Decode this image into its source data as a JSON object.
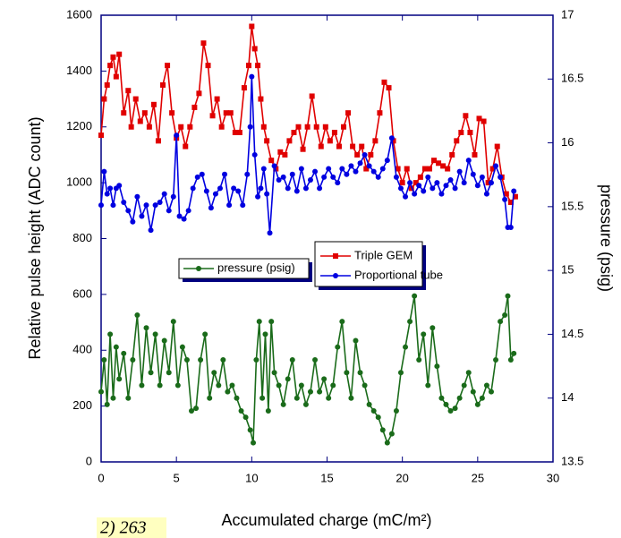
{
  "chart_data": {
    "type": "line",
    "x_label": "Accumulated charge (mC/m²)",
    "y_label": "Relative pulse height (ADC count)",
    "y2_label": "pressure (psig)",
    "annotation": "2) 263",
    "xlim": [
      0,
      30
    ],
    "xticks": [
      0,
      5,
      10,
      15,
      20,
      25,
      30
    ],
    "ylim": [
      0,
      1600
    ],
    "yticks": [
      0,
      200,
      400,
      600,
      800,
      1000,
      1200,
      1400,
      1600
    ],
    "y2lim": [
      13.5,
      17
    ],
    "y2ticks": [
      13.5,
      14,
      14.5,
      15,
      15.5,
      16,
      16.5,
      17
    ],
    "axis_color": "#000080",
    "series": [
      {
        "name": "Triple GEM",
        "color": "#e00000",
        "marker": "square",
        "x": [
          0,
          0.2,
          0.4,
          0.6,
          0.8,
          1.0,
          1.2,
          1.5,
          1.8,
          2.0,
          2.3,
          2.6,
          2.9,
          3.2,
          3.5,
          3.8,
          4.1,
          4.4,
          4.7,
          5.0,
          5.3,
          5.6,
          5.9,
          6.2,
          6.5,
          6.8,
          7.1,
          7.4,
          7.7,
          8.0,
          8.3,
          8.6,
          8.9,
          9.2,
          9.5,
          9.8,
          10.0,
          10.2,
          10.4,
          10.6,
          10.8,
          11.0,
          11.3,
          11.6,
          11.9,
          12.2,
          12.5,
          12.8,
          13.1,
          13.4,
          13.7,
          14.0,
          14.3,
          14.6,
          14.9,
          15.2,
          15.5,
          15.8,
          16.1,
          16.4,
          16.7,
          17.0,
          17.3,
          17.6,
          17.9,
          18.2,
          18.5,
          18.8,
          19.1,
          19.4,
          19.7,
          20.0,
          20.3,
          20.6,
          20.9,
          21.2,
          21.5,
          21.8,
          22.1,
          22.4,
          22.7,
          23.0,
          23.3,
          23.6,
          23.9,
          24.2,
          24.5,
          24.8,
          25.1,
          25.4,
          25.7,
          26.0,
          26.3,
          26.6,
          26.9,
          27.2,
          27.5
        ],
        "values": [
          1170,
          1300,
          1350,
          1420,
          1450,
          1380,
          1460,
          1250,
          1330,
          1200,
          1300,
          1220,
          1250,
          1200,
          1280,
          1150,
          1350,
          1420,
          1250,
          1160,
          1200,
          1130,
          1200,
          1270,
          1320,
          1500,
          1420,
          1240,
          1300,
          1200,
          1250,
          1250,
          1180,
          1180,
          1340,
          1420,
          1560,
          1480,
          1420,
          1300,
          1200,
          1150,
          1080,
          1050,
          1110,
          1100,
          1150,
          1180,
          1200,
          1120,
          1200,
          1310,
          1200,
          1130,
          1200,
          1150,
          1180,
          1130,
          1200,
          1250,
          1130,
          1100,
          1130,
          1050,
          1100,
          1150,
          1250,
          1360,
          1340,
          1150,
          1050,
          1000,
          1050,
          980,
          1000,
          1020,
          1050,
          1050,
          1080,
          1070,
          1060,
          1050,
          1100,
          1150,
          1180,
          1240,
          1180,
          1100,
          1230,
          1220,
          1000,
          1050,
          1130,
          1020,
          960,
          930,
          950
        ]
      },
      {
        "name": "Proportional tube",
        "color": "#0000e0",
        "marker": "circle",
        "x": [
          0,
          0.2,
          0.4,
          0.6,
          0.8,
          1.0,
          1.2,
          1.5,
          1.8,
          2.1,
          2.4,
          2.7,
          3.0,
          3.3,
          3.6,
          3.9,
          4.2,
          4.5,
          4.8,
          5.0,
          5.2,
          5.5,
          5.8,
          6.1,
          6.4,
          6.7,
          7.0,
          7.3,
          7.6,
          7.9,
          8.2,
          8.5,
          8.8,
          9.1,
          9.4,
          9.7,
          9.9,
          10.0,
          10.2,
          10.4,
          10.6,
          10.8,
          11.0,
          11.2,
          11.5,
          11.8,
          12.1,
          12.4,
          12.7,
          13.0,
          13.3,
          13.6,
          13.9,
          14.2,
          14.5,
          14.8,
          15.1,
          15.4,
          15.7,
          16.0,
          16.3,
          16.6,
          16.9,
          17.2,
          17.5,
          17.8,
          18.1,
          18.4,
          18.7,
          19.0,
          19.3,
          19.6,
          19.9,
          20.2,
          20.5,
          20.8,
          21.1,
          21.4,
          21.7,
          22.0,
          22.3,
          22.6,
          22.9,
          23.2,
          23.5,
          23.8,
          24.1,
          24.4,
          24.7,
          25.0,
          25.3,
          25.6,
          25.9,
          26.2,
          26.5,
          26.8,
          27.0,
          27.2,
          27.4
        ],
        "values": [
          920,
          1040,
          960,
          980,
          920,
          980,
          990,
          930,
          900,
          860,
          950,
          880,
          920,
          830,
          920,
          930,
          960,
          900,
          950,
          1170,
          880,
          870,
          900,
          980,
          1020,
          1030,
          970,
          910,
          960,
          980,
          1030,
          920,
          980,
          970,
          920,
          1030,
          1200,
          1380,
          1100,
          950,
          980,
          1050,
          960,
          820,
          1060,
          1010,
          1020,
          980,
          1030,
          970,
          1050,
          980,
          1010,
          1040,
          980,
          1020,
          1050,
          1020,
          1000,
          1050,
          1030,
          1060,
          1040,
          1070,
          1100,
          1060,
          1040,
          1020,
          1050,
          1080,
          1160,
          1020,
          980,
          950,
          1000,
          960,
          990,
          970,
          1020,
          980,
          1000,
          960,
          990,
          1010,
          980,
          1040,
          1000,
          1080,
          1030,
          990,
          1020,
          960,
          1000,
          1060,
          1020,
          940,
          840,
          840,
          970
        ]
      },
      {
        "name": "pressure (psig)",
        "color": "#1a6b1a",
        "marker": "circle",
        "axis": "y2",
        "x": [
          0,
          0.2,
          0.4,
          0.6,
          0.8,
          1.0,
          1.2,
          1.5,
          1.8,
          2.1,
          2.4,
          2.7,
          3.0,
          3.3,
          3.6,
          3.9,
          4.2,
          4.5,
          4.8,
          5.1,
          5.4,
          5.7,
          6.0,
          6.3,
          6.6,
          6.9,
          7.2,
          7.5,
          7.8,
          8.1,
          8.4,
          8.7,
          9.0,
          9.3,
          9.6,
          9.9,
          10.1,
          10.3,
          10.5,
          10.7,
          10.9,
          11.1,
          11.3,
          11.5,
          11.8,
          12.1,
          12.4,
          12.7,
          13.0,
          13.3,
          13.6,
          13.9,
          14.2,
          14.5,
          14.8,
          15.1,
          15.4,
          15.7,
          16.0,
          16.3,
          16.6,
          16.9,
          17.2,
          17.5,
          17.8,
          18.1,
          18.4,
          18.7,
          19.0,
          19.3,
          19.6,
          19.9,
          20.2,
          20.5,
          20.8,
          21.1,
          21.4,
          21.7,
          22.0,
          22.3,
          22.6,
          22.9,
          23.2,
          23.5,
          23.8,
          24.1,
          24.4,
          24.7,
          25.0,
          25.3,
          25.6,
          25.9,
          26.2,
          26.5,
          26.8,
          27.0,
          27.2,
          27.4
        ],
        "values": [
          14.05,
          14.3,
          13.95,
          14.5,
          14.0,
          14.4,
          14.15,
          14.35,
          14.0,
          14.3,
          14.65,
          14.1,
          14.55,
          14.2,
          14.5,
          14.1,
          14.45,
          14.2,
          14.6,
          14.1,
          14.4,
          14.3,
          13.9,
          13.92,
          14.3,
          14.5,
          14.0,
          14.2,
          14.1,
          14.3,
          14.05,
          14.1,
          14.0,
          13.9,
          13.85,
          13.75,
          13.65,
          14.3,
          14.6,
          14.0,
          14.5,
          13.9,
          14.6,
          14.2,
          14.1,
          13.95,
          14.15,
          14.3,
          14.0,
          14.1,
          13.95,
          14.05,
          14.3,
          14.05,
          14.15,
          14.0,
          14.1,
          14.4,
          14.6,
          14.2,
          14.0,
          14.45,
          14.2,
          14.1,
          13.95,
          13.9,
          13.85,
          13.75,
          13.65,
          13.72,
          13.9,
          14.2,
          14.4,
          14.6,
          14.8,
          14.3,
          14.5,
          14.1,
          14.55,
          14.25,
          14.0,
          13.95,
          13.9,
          13.92,
          14.0,
          14.1,
          14.2,
          14.05,
          13.95,
          14.0,
          14.1,
          14.05,
          14.3,
          14.6,
          14.65,
          14.8,
          14.3,
          14.35
        ]
      }
    ]
  }
}
